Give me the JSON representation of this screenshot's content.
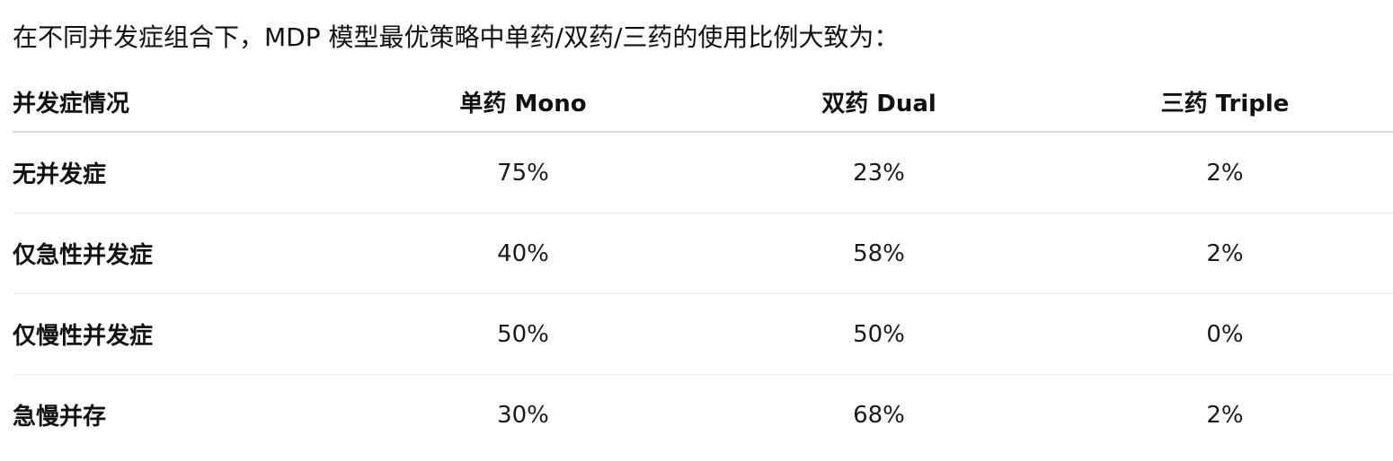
{
  "intro_text": "在不同并发症组合下，MDP 模型最优策略中单药/双药/三药的使用比例大致为：",
  "table": {
    "headers": [
      "并发症情况",
      "单药 Mono",
      "双药 Dual",
      "三药 Triple"
    ],
    "rows": [
      [
        "无并发症",
        "75%",
        "23%",
        "2%"
      ],
      [
        "仅急性并发症",
        "40%",
        "58%",
        "2%"
      ],
      [
        "仅慢性并发症",
        "50%",
        "50%",
        "0%"
      ],
      [
        "急慢并存",
        "30%",
        "68%",
        "2%"
      ]
    ]
  }
}
